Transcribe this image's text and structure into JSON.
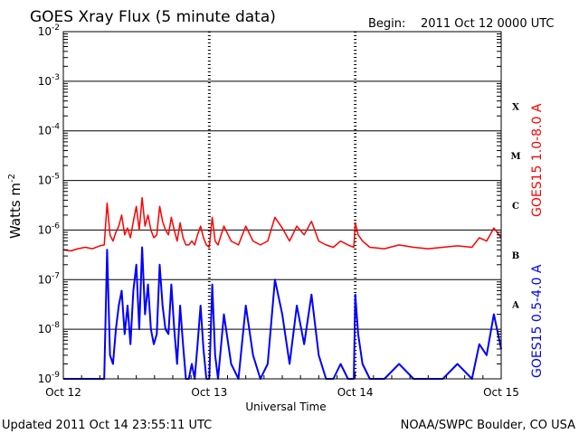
{
  "header": {
    "title": "GOES Xray Flux (5 minute data)",
    "begin_label": "Begin:",
    "begin_value": "2011 Oct 12 0000 UTC"
  },
  "footer": {
    "updated": "Updated 2011 Oct 14 23:55:11 UTC",
    "credit": "NOAA/SWPC Boulder, CO USA"
  },
  "colors": {
    "long_channel": "#ff0000",
    "short_channel": "#0000ff"
  },
  "chart_data": {
    "type": "line",
    "xlabel": "Universal Time",
    "ylabel": "Watts m",
    "ylabel_sup": "-2",
    "yscale": "log",
    "ylim": [
      1e-09,
      0.01
    ],
    "xlim_days": [
      0,
      3
    ],
    "x_tick_labels": [
      "Oct 12",
      "Oct 13",
      "Oct 14",
      "Oct 15"
    ],
    "y_ticks": [
      {
        "base": "10",
        "exp": "-9"
      },
      {
        "base": "10",
        "exp": "-8"
      },
      {
        "base": "10",
        "exp": "-7"
      },
      {
        "base": "10",
        "exp": "-6"
      },
      {
        "base": "10",
        "exp": "-5"
      },
      {
        "base": "10",
        "exp": "-4"
      },
      {
        "base": "10",
        "exp": "-3"
      },
      {
        "base": "10",
        "exp": "-2"
      }
    ],
    "flare_classes": [
      "A",
      "B",
      "C",
      "M",
      "X"
    ],
    "grid": true,
    "series": [
      {
        "name": "GOES15 1.0-8.0 A",
        "color": "#ff0000",
        "x": [
          0.0,
          0.05,
          0.1,
          0.15,
          0.2,
          0.25,
          0.28,
          0.3,
          0.32,
          0.34,
          0.36,
          0.38,
          0.4,
          0.42,
          0.44,
          0.46,
          0.48,
          0.5,
          0.52,
          0.54,
          0.56,
          0.58,
          0.6,
          0.62,
          0.64,
          0.66,
          0.68,
          0.7,
          0.72,
          0.74,
          0.76,
          0.78,
          0.8,
          0.82,
          0.84,
          0.86,
          0.88,
          0.9,
          0.92,
          0.94,
          0.96,
          0.98,
          1.0,
          1.02,
          1.04,
          1.06,
          1.1,
          1.15,
          1.2,
          1.25,
          1.3,
          1.35,
          1.4,
          1.45,
          1.5,
          1.55,
          1.6,
          1.65,
          1.7,
          1.75,
          1.8,
          1.85,
          1.9,
          1.95,
          1.99,
          2.0,
          2.02,
          2.05,
          2.1,
          2.2,
          2.3,
          2.4,
          2.5,
          2.6,
          2.7,
          2.8,
          2.85,
          2.9,
          2.95,
          3.0
        ],
        "y": [
          4e-07,
          3.8e-07,
          4.2e-07,
          4.5e-07,
          4.2e-07,
          4.8e-07,
          5e-07,
          3.5e-06,
          8e-07,
          6e-07,
          9e-07,
          1.2e-06,
          2e-06,
          8e-07,
          1.1e-06,
          7e-07,
          1.5e-06,
          3e-06,
          1e-06,
          4.5e-06,
          1.2e-06,
          2e-06,
          1e-06,
          7e-07,
          8e-07,
          3e-06,
          1.5e-06,
          1e-06,
          8e-07,
          1.8e-06,
          1e-06,
          6e-07,
          1.4e-06,
          7e-07,
          5e-07,
          5e-07,
          6e-07,
          5e-07,
          8e-07,
          1.2e-06,
          7e-07,
          5e-07,
          4.5e-07,
          1.8e-06,
          6e-07,
          5e-07,
          1.2e-06,
          6e-07,
          5e-07,
          1.2e-06,
          6e-07,
          5e-07,
          6e-07,
          1.8e-06,
          1.1e-06,
          6e-07,
          1.2e-06,
          8e-07,
          1.5e-06,
          6e-07,
          5e-07,
          4.5e-07,
          6e-07,
          5e-07,
          4.5e-07,
          1.4e-06,
          8e-07,
          6e-07,
          4.5e-07,
          4.2e-07,
          5e-07,
          4.5e-07,
          4.2e-07,
          4.5e-07,
          4.8e-07,
          4.5e-07,
          7e-07,
          6e-07,
          1.1e-06,
          7e-07
        ]
      },
      {
        "name": "GOES15 0.5-4.0 A",
        "color": "#0000ff",
        "x": [
          0.0,
          0.05,
          0.1,
          0.15,
          0.2,
          0.25,
          0.28,
          0.3,
          0.32,
          0.34,
          0.36,
          0.38,
          0.4,
          0.42,
          0.44,
          0.46,
          0.48,
          0.5,
          0.52,
          0.54,
          0.56,
          0.58,
          0.6,
          0.62,
          0.64,
          0.66,
          0.68,
          0.7,
          0.72,
          0.74,
          0.76,
          0.78,
          0.8,
          0.82,
          0.84,
          0.86,
          0.88,
          0.9,
          0.92,
          0.94,
          0.96,
          0.98,
          1.0,
          1.02,
          1.04,
          1.06,
          1.1,
          1.15,
          1.2,
          1.25,
          1.3,
          1.35,
          1.4,
          1.45,
          1.5,
          1.55,
          1.6,
          1.65,
          1.7,
          1.75,
          1.8,
          1.85,
          1.9,
          1.95,
          1.99,
          2.0,
          2.02,
          2.05,
          2.1,
          2.2,
          2.3,
          2.4,
          2.5,
          2.6,
          2.7,
          2.8,
          2.85,
          2.9,
          2.95,
          3.0
        ],
        "y": [
          1e-09,
          1e-09,
          1e-09,
          1e-09,
          1e-09,
          1e-09,
          1e-09,
          4e-07,
          3e-09,
          2e-09,
          1e-08,
          3e-08,
          6e-08,
          8e-09,
          3e-08,
          5e-09,
          6e-08,
          2e-07,
          1e-08,
          4.5e-07,
          2e-08,
          8e-08,
          1e-08,
          5e-09,
          8e-09,
          2e-07,
          3e-08,
          1e-08,
          8e-09,
          8e-08,
          1e-08,
          2e-09,
          3e-08,
          5e-09,
          1e-09,
          1e-09,
          2e-09,
          1e-09,
          5e-09,
          3e-08,
          4e-09,
          1e-09,
          1e-09,
          8e-08,
          3e-09,
          1e-09,
          2e-08,
          2e-09,
          1e-09,
          3e-08,
          3e-09,
          1e-09,
          2e-09,
          1e-07,
          2e-08,
          2e-09,
          3e-08,
          5e-09,
          5e-08,
          3e-09,
          1e-09,
          1e-09,
          2e-09,
          1e-09,
          1e-09,
          5e-08,
          8e-09,
          2e-09,
          1e-09,
          1e-09,
          2e-09,
          1e-09,
          1e-09,
          1e-09,
          2e-09,
          1e-09,
          5e-09,
          3e-09,
          2e-08,
          4e-09
        ]
      }
    ]
  }
}
